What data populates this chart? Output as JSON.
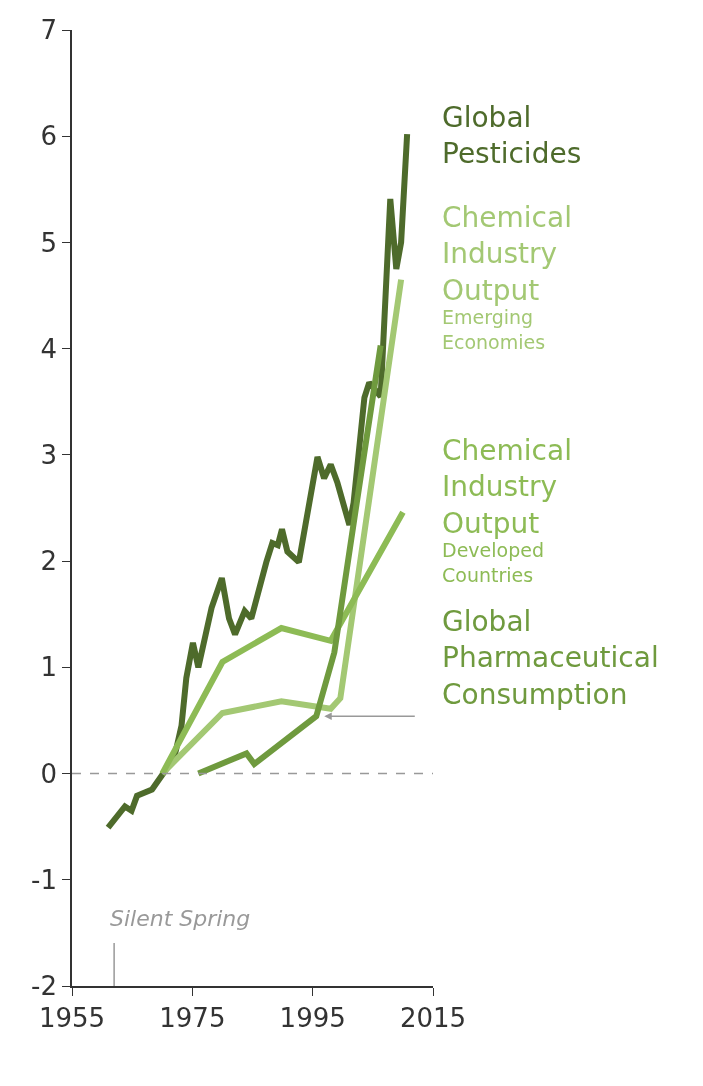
{
  "chart_data": {
    "type": "line",
    "series": [
      {
        "name": "Global Pesticides",
        "color": "#4e6b2b",
        "x": [
          1961,
          1963.8,
          1964.9,
          1965.8,
          1968.3,
          1969.9,
          1972,
          1973.2,
          1974,
          1975.1,
          1976,
          1978.2,
          1979.9,
          1981.1,
          1982.1,
          1983.7,
          1984.8,
          1987.3,
          1988.3,
          1989.2,
          1989.9,
          1990.8,
          1992.7,
          1995.8,
          1996.9,
          1998,
          1999.1,
          2001.1,
          2001.8,
          2003.6,
          2004.4,
          2006.3,
          2007.9,
          2008.9,
          2009.7,
          2010.7
        ],
        "values": [
          -0.51,
          -0.31,
          -0.35,
          -0.21,
          -0.15,
          -0.02,
          0.15,
          0.45,
          0.9,
          1.23,
          1.0,
          1.56,
          1.84,
          1.46,
          1.31,
          1.53,
          1.46,
          1.99,
          2.17,
          2.15,
          2.3,
          2.09,
          1.99,
          2.98,
          2.78,
          2.91,
          2.74,
          2.34,
          2.55,
          3.54,
          3.68,
          3.55,
          5.41,
          4.75,
          5.0,
          6.02
        ]
      },
      {
        "name": "Chemical Industry Output",
        "color": "#a3c873",
        "x": [
          1970,
          1980,
          1989.8,
          1998,
          1999.6,
          2009.7
        ],
        "values": [
          0,
          0.57,
          0.68,
          0.61,
          0.71,
          4.65
        ]
      },
      {
        "name": "Chemical Industry Output",
        "color": "#8dbb55",
        "x": [
          1970,
          1980,
          1989.8,
          1998,
          2010
        ],
        "values": [
          0,
          1.05,
          1.37,
          1.25,
          2.46
        ]
      },
      {
        "name": "Global Pharmaceutical Consumption",
        "color": "#6f9a3e",
        "x": [
          1976,
          1984,
          1985.3,
          1995.6,
          1998.6,
          2002.3,
          2006.3
        ],
        "values": [
          0,
          0.19,
          0.09,
          0.54,
          1.14,
          2.54,
          4.03
        ]
      }
    ],
    "xlim": [
      1955,
      2015
    ],
    "xticks": [
      1955,
      1975,
      1995,
      2015
    ],
    "ylim": [
      -2,
      7
    ],
    "yticks": [
      -2,
      -1,
      0,
      1,
      2,
      3,
      4,
      5,
      6,
      7
    ],
    "grid": false,
    "legend": false,
    "line_style": "solid",
    "ref_lines": [
      {
        "axis": "y",
        "value": 0,
        "color": "#999999",
        "line_style": "dashed"
      },
      {
        "axis": "x",
        "value": 1962,
        "label": "Silent Spring",
        "color": "#999999"
      }
    ],
    "annotations": [
      "Emerging Economies",
      "Developed Countries"
    ]
  }
}
